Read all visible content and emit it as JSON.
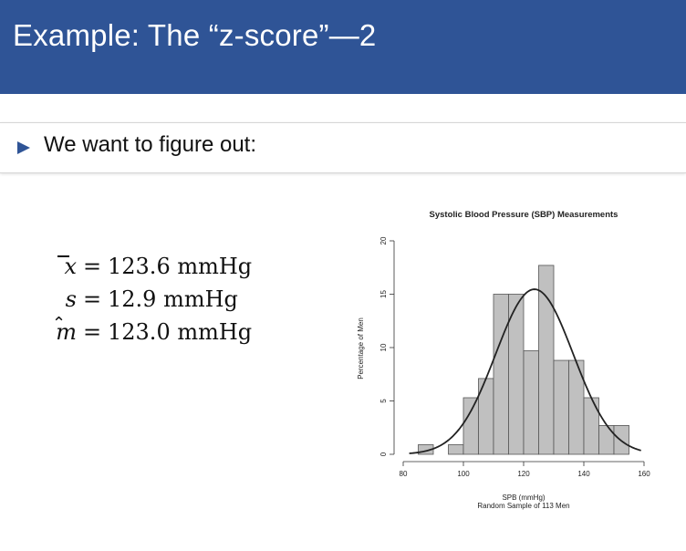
{
  "slide": {
    "title": "Example: The “z-score”—2",
    "bullet": "We want to figure out:"
  },
  "formulas": {
    "mean": {
      "lhs": "x",
      "eq": "=",
      "rhs": "123.6 mmHg"
    },
    "sd": {
      "lhs": "s",
      "eq": "=",
      "rhs": "12.9 mmHg"
    },
    "median": {
      "lhs": "m",
      "eq": "=",
      "rhs": "123.0 mmHg"
    }
  },
  "colors": {
    "title_bar": "#2f5496",
    "bullet_arrow": "#2f5496",
    "bars": "#c0c0c0"
  },
  "chart_data": {
    "type": "bar",
    "title": "Systolic Blood Pressure (SBP) Measurements",
    "xlabel": "SPB (mmHg)",
    "xlabel2": "Random Sample of 113 Men",
    "ylabel": "Percentage of Men",
    "xlim": [
      80,
      160
    ],
    "ylim": [
      0,
      20
    ],
    "x_ticks": [
      80,
      100,
      120,
      140,
      160
    ],
    "y_ticks": [
      0,
      5,
      10,
      15,
      20
    ],
    "bin_width": 5,
    "bins": [
      {
        "start": 85,
        "value": 0.9
      },
      {
        "start": 95,
        "value": 0.9
      },
      {
        "start": 100,
        "value": 5.3
      },
      {
        "start": 105,
        "value": 7.1
      },
      {
        "start": 110,
        "value": 15.0
      },
      {
        "start": 115,
        "value": 15.0
      },
      {
        "start": 120,
        "value": 9.7
      },
      {
        "start": 125,
        "value": 17.7
      },
      {
        "start": 130,
        "value": 8.8
      },
      {
        "start": 135,
        "value": 8.8
      },
      {
        "start": 140,
        "value": 5.3
      },
      {
        "start": 145,
        "value": 2.7
      },
      {
        "start": 150,
        "value": 2.7
      }
    ],
    "curve": {
      "type": "normal",
      "mean": 123.6,
      "sd": 12.9
    }
  }
}
